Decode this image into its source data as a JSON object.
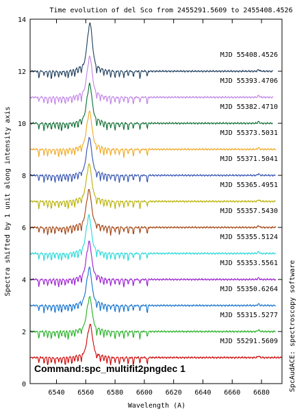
{
  "chart_data": {
    "type": "line",
    "title": "Time evolution of del Sco from 2455291.5609 to 2455408.4526",
    "xlabel": "Wavelength (A)",
    "ylabel": "Spectra shifted by 1 unit along intensity axis",
    "xlim": [
      6522,
      6694
    ],
    "ylim": [
      0,
      14
    ],
    "x_ticks": [
      6540,
      6560,
      6580,
      6600,
      6620,
      6640,
      6660,
      6680
    ],
    "y_ticks": [
      0,
      2,
      4,
      6,
      8,
      10,
      12,
      14
    ],
    "grid": false,
    "legend": "labels right of each spectrum",
    "series": [
      {
        "name": "MJD 55291.5609",
        "color": "#cc0000",
        "offset": 1,
        "x_start": 6522,
        "x_end": 6694,
        "peak_x": 6562.8,
        "peak_y": 2.1
      },
      {
        "name": "MJD 55315.5277",
        "color": "#20b020",
        "offset": 2,
        "x_start": 6522,
        "x_end": 6690,
        "peak_x": 6562.5,
        "peak_y": 3.15
      },
      {
        "name": "MJD 55350.6264",
        "color": "#0c70d0",
        "offset": 3,
        "x_start": 6522,
        "x_end": 6690,
        "peak_x": 6562.3,
        "peak_y": 4.25
      },
      {
        "name": "MJD 55353.5561",
        "color": "#9a1ad0",
        "offset": 4,
        "x_start": 6522,
        "x_end": 6690,
        "peak_x": 6562.2,
        "peak_y": 5.25
      },
      {
        "name": "MJD 55355.5124",
        "color": "#22d8d8",
        "offset": 5,
        "x_start": 6522,
        "x_end": 6690,
        "peak_x": 6562.0,
        "peak_y": 6.25
      },
      {
        "name": "MJD 55357.5430",
        "color": "#a0400c",
        "offset": 6,
        "x_start": 6522,
        "x_end": 6690,
        "peak_x": 6562.1,
        "peak_y": 7.25
      },
      {
        "name": "MJD 55365.4951",
        "color": "#b8b000",
        "offset": 7,
        "x_start": 6522,
        "x_end": 6690,
        "peak_x": 6562.2,
        "peak_y": 8.25
      },
      {
        "name": "MJD 55371.5041",
        "color": "#3050b0",
        "offset": 8,
        "x_start": 6522,
        "x_end": 6690,
        "peak_x": 6562.3,
        "peak_y": 9.25
      },
      {
        "name": "MJD 55373.5031",
        "color": "#f0a820",
        "offset": 9,
        "x_start": 6522,
        "x_end": 6690,
        "peak_x": 6562.4,
        "peak_y": 10.25
      },
      {
        "name": "MJD 55382.4710",
        "color": "#086c30",
        "offset": 10,
        "x_start": 6522,
        "x_end": 6688,
        "peak_x": 6562.5,
        "peak_y": 11.3
      },
      {
        "name": "MJD 55393.4706",
        "color": "#c080e8",
        "offset": 11,
        "x_start": 6522,
        "x_end": 6688,
        "peak_x": 6562.6,
        "peak_y": 12.35
      },
      {
        "name": "MJD 55408.4526",
        "color": "#1c3c5a",
        "offset": 12,
        "x_start": 6522,
        "x_end": 6688,
        "peak_x": 6562.7,
        "peak_y": 13.6
      }
    ]
  },
  "side_label": "SpcAudACE: spectroscopy software",
  "command_label": "Command:spc_multifit2pngdec 1"
}
